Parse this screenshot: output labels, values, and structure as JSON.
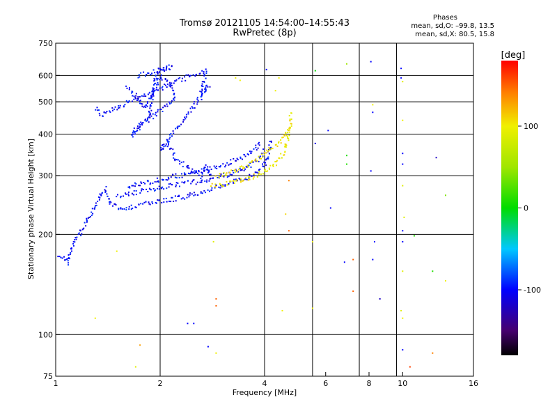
{
  "title": "Tromsø 20121105 14:54:00–14:55:43",
  "subtitle": "RwPretec (8p)",
  "phases": {
    "heading": "Phases",
    "line_o": "mean, sd,O: –99.8, 13.5",
    "line_x": "mean, sd,X:  80.5, 15.8"
  },
  "chart_data": {
    "type": "scatter",
    "xlabel": "Frequency [MHz]",
    "ylabel": "Stationary phase Virtual Height [km]",
    "x_scale": "log2",
    "y_scale": "log",
    "xlim": [
      1,
      16
    ],
    "ylim": [
      75,
      750
    ],
    "x_ticks": [
      1,
      2,
      4,
      6,
      8,
      10,
      16
    ],
    "y_ticks": [
      75,
      100,
      200,
      300,
      400,
      500,
      600,
      750
    ],
    "grid_x": [
      2,
      4,
      5.5,
      7.5,
      9.6
    ],
    "grid_y": [
      100,
      200,
      300,
      400,
      500,
      600
    ],
    "colorbar": {
      "label": "[deg]",
      "range": [
        -180,
        180
      ],
      "ticks": [
        100,
        0,
        -100
      ]
    },
    "phase_summary": {
      "O": {
        "mean": -99.8,
        "sd": 13.5
      },
      "X": {
        "mean": 80.5,
        "sd": 15.8
      }
    },
    "traces": [
      {
        "name": "",
        "phase": -100,
        "points": [
          [
            1.02,
            175
          ],
          [
            1.08,
            165
          ],
          [
            1.12,
            190
          ],
          [
            1.18,
            205
          ],
          [
            1.25,
            230
          ],
          [
            1.32,
            255
          ],
          [
            1.38,
            275
          ],
          [
            1.45,
            245
          ],
          [
            1.55,
            240
          ],
          [
            1.7,
            245
          ],
          [
            1.9,
            250
          ],
          [
            2.1,
            255
          ],
          [
            2.4,
            262
          ],
          [
            2.7,
            272
          ],
          [
            3.0,
            282
          ],
          [
            3.3,
            290
          ],
          [
            3.6,
            300
          ],
          [
            3.8,
            312
          ],
          [
            4.0,
            328
          ],
          [
            4.1,
            350
          ],
          [
            4.15,
            390
          ]
        ]
      },
      {
        "name": "",
        "phase": -100,
        "points": [
          [
            1.5,
            262
          ],
          [
            1.7,
            268
          ],
          [
            2.0,
            278
          ],
          [
            2.3,
            285
          ],
          [
            2.6,
            290
          ],
          [
            2.9,
            298
          ],
          [
            3.2,
            305
          ],
          [
            3.5,
            318
          ],
          [
            3.8,
            335
          ],
          [
            4.0,
            360
          ]
        ]
      },
      {
        "name": "",
        "phase": -100,
        "points": [
          [
            1.6,
            280
          ],
          [
            1.9,
            290
          ],
          [
            2.2,
            300
          ],
          [
            2.5,
            308
          ],
          [
            2.8,
            318
          ],
          [
            3.1,
            328
          ],
          [
            3.4,
            340
          ],
          [
            3.7,
            360
          ],
          [
            3.9,
            380
          ]
        ]
      },
      {
        "name": "",
        "phase": 100,
        "points": [
          [
            2.8,
            280
          ],
          [
            3.1,
            285
          ],
          [
            3.4,
            292
          ],
          [
            3.7,
            300
          ],
          [
            4.0,
            310
          ],
          [
            4.2,
            320
          ],
          [
            4.4,
            338
          ],
          [
            4.55,
            360
          ],
          [
            4.65,
            390
          ],
          [
            4.72,
            430
          ],
          [
            4.75,
            470
          ]
        ]
      },
      {
        "name": "",
        "phase": 100,
        "points": [
          [
            2.9,
            300
          ],
          [
            3.2,
            310
          ],
          [
            3.5,
            322
          ],
          [
            3.8,
            340
          ],
          [
            4.1,
            358
          ],
          [
            4.35,
            375
          ],
          [
            4.55,
            400
          ],
          [
            4.7,
            420
          ]
        ]
      },
      {
        "name": "",
        "phase": -100,
        "points": [
          [
            1.6,
            560
          ],
          [
            1.7,
            520
          ],
          [
            1.8,
            480
          ],
          [
            1.9,
            540
          ],
          [
            2.0,
            600
          ],
          [
            2.1,
            580
          ],
          [
            2.2,
            520
          ],
          [
            2.05,
            480
          ],
          [
            1.75,
            430
          ],
          [
            1.65,
            400
          ],
          [
            1.85,
            450
          ],
          [
            1.95,
            620
          ],
          [
            2.15,
            640
          ],
          [
            1.7,
            600
          ]
        ]
      },
      {
        "name": "",
        "phase": -100,
        "points": [
          [
            1.3,
            480
          ],
          [
            1.35,
            460
          ],
          [
            1.4,
            470
          ],
          [
            2.5,
            610
          ],
          [
            2.7,
            620
          ],
          [
            2.6,
            530
          ],
          [
            2.75,
            560
          ],
          [
            2.0,
            360
          ],
          [
            2.1,
            380
          ],
          [
            2.2,
            340
          ],
          [
            2.6,
            300
          ],
          [
            2.7,
            320
          ],
          [
            2.8,
            300
          ]
        ]
      }
    ],
    "scatter_points": [
      {
        "x": 4.7,
        "y": 290,
        "phase": 140
      },
      {
        "x": 4.6,
        "y": 230,
        "phase": 110
      },
      {
        "x": 4.7,
        "y": 205,
        "phase": 150
      },
      {
        "x": 4.5,
        "y": 118,
        "phase": 100
      },
      {
        "x": 5.5,
        "y": 190,
        "phase": 100
      },
      {
        "x": 5.5,
        "y": 120,
        "phase": 100
      },
      {
        "x": 5.6,
        "y": 375,
        "phase": -110
      },
      {
        "x": 5.6,
        "y": 620,
        "phase": 0
      },
      {
        "x": 4.05,
        "y": 625,
        "phase": -100
      },
      {
        "x": 6.1,
        "y": 410,
        "phase": -100
      },
      {
        "x": 6.2,
        "y": 240,
        "phase": -100
      },
      {
        "x": 6.9,
        "y": 345,
        "phase": 10
      },
      {
        "x": 6.9,
        "y": 325,
        "phase": 10
      },
      {
        "x": 6.9,
        "y": 650,
        "phase": 50
      },
      {
        "x": 6.8,
        "y": 165,
        "phase": -100
      },
      {
        "x": 7.2,
        "y": 168,
        "phase": 150
      },
      {
        "x": 7.2,
        "y": 135,
        "phase": 150
      },
      {
        "x": 8.1,
        "y": 660,
        "phase": -100
      },
      {
        "x": 8.2,
        "y": 465,
        "phase": -100
      },
      {
        "x": 8.2,
        "y": 490,
        "phase": 100
      },
      {
        "x": 8.1,
        "y": 310,
        "phase": -100
      },
      {
        "x": 8.3,
        "y": 190,
        "phase": -100
      },
      {
        "x": 8.2,
        "y": 168,
        "phase": -100
      },
      {
        "x": 8.6,
        "y": 128,
        "phase": -120
      },
      {
        "x": 9.9,
        "y": 630,
        "phase": -100
      },
      {
        "x": 9.9,
        "y": 590,
        "phase": -100
      },
      {
        "x": 10.0,
        "y": 575,
        "phase": 90
      },
      {
        "x": 10.0,
        "y": 440,
        "phase": 100
      },
      {
        "x": 10.0,
        "y": 350,
        "phase": -100
      },
      {
        "x": 10.0,
        "y": 325,
        "phase": -100
      },
      {
        "x": 10.0,
        "y": 280,
        "phase": 90
      },
      {
        "x": 10.1,
        "y": 225,
        "phase": 90
      },
      {
        "x": 10.0,
        "y": 205,
        "phase": -100
      },
      {
        "x": 10.0,
        "y": 190,
        "phase": -100
      },
      {
        "x": 10.0,
        "y": 155,
        "phase": 90
      },
      {
        "x": 9.9,
        "y": 118,
        "phase": 90
      },
      {
        "x": 10.0,
        "y": 112,
        "phase": 100
      },
      {
        "x": 10.0,
        "y": 90,
        "phase": -100
      },
      {
        "x": 10.5,
        "y": 80,
        "phase": 160
      },
      {
        "x": 10.8,
        "y": 198,
        "phase": 10
      },
      {
        "x": 12.2,
        "y": 88,
        "phase": 140
      },
      {
        "x": 12.2,
        "y": 155,
        "phase": 10
      },
      {
        "x": 12.5,
        "y": 340,
        "phase": -120
      },
      {
        "x": 13.3,
        "y": 262,
        "phase": 40
      },
      {
        "x": 13.3,
        "y": 145,
        "phase": 100
      },
      {
        "x": 2.85,
        "y": 190,
        "phase": 90
      },
      {
        "x": 2.9,
        "y": 128,
        "phase": 150
      },
      {
        "x": 2.9,
        "y": 122,
        "phase": 150
      },
      {
        "x": 2.75,
        "y": 92,
        "phase": -100
      },
      {
        "x": 2.9,
        "y": 88,
        "phase": 100
      },
      {
        "x": 2.4,
        "y": 108,
        "phase": -100
      },
      {
        "x": 2.5,
        "y": 108,
        "phase": -100
      },
      {
        "x": 1.7,
        "y": 80,
        "phase": 90
      },
      {
        "x": 1.75,
        "y": 93,
        "phase": 130
      },
      {
        "x": 1.5,
        "y": 178,
        "phase": 100
      },
      {
        "x": 1.3,
        "y": 112,
        "phase": 100
      },
      {
        "x": 3.3,
        "y": 590,
        "phase": 100
      },
      {
        "x": 3.4,
        "y": 580,
        "phase": 100
      },
      {
        "x": 4.3,
        "y": 540,
        "phase": 100
      },
      {
        "x": 4.4,
        "y": 590,
        "phase": 100
      }
    ]
  }
}
